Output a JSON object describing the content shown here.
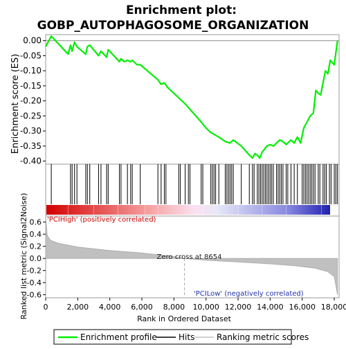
{
  "chart_data": {
    "type": "line",
    "title": "Enrichment plot:",
    "subtitle": "GOBP_AUTOPHAGOSOME_ORGANIZATION",
    "top_panel": {
      "ylabel": "Enrichment score (ES)",
      "ylim": [
        -0.41,
        0.02
      ],
      "yticks": [
        0.0,
        -0.05,
        -0.1,
        -0.15,
        -0.2,
        -0.25,
        -0.3,
        -0.35,
        -0.4
      ],
      "ytick_labels": [
        "0.00",
        "-0.05",
        "-0.10",
        "-0.15",
        "-0.20",
        "-0.25",
        "-0.30",
        "-0.35",
        "-0.40"
      ],
      "series_name": "Enrichment profile",
      "series_color": "#00ee00",
      "x": [
        0,
        350,
        1400,
        1550,
        1650,
        1800,
        1950,
        2500,
        2600,
        2750,
        3300,
        3450,
        3800,
        3900,
        4600,
        4700,
        4900,
        5100,
        5300,
        5400,
        5700,
        5900,
        7000,
        7200,
        7400,
        7600,
        8300,
        8700,
        9200,
        9700,
        10000,
        10300,
        10800,
        11200,
        11500,
        11700,
        12200,
        12700,
        12900,
        13050,
        13200,
        13350,
        13500,
        13650,
        13800,
        14000,
        14200,
        14400,
        14600,
        14800,
        15000,
        15300,
        15500,
        15700,
        15900,
        16100,
        16300,
        16500,
        16700,
        16850,
        17000,
        17150,
        17300,
        17450,
        17600,
        17750,
        18000,
        18200
      ],
      "y": [
        -0.02,
        0.015,
        -0.045,
        -0.015,
        -0.035,
        -0.005,
        -0.02,
        -0.045,
        -0.02,
        -0.015,
        -0.05,
        -0.035,
        -0.055,
        -0.03,
        -0.07,
        -0.06,
        -0.07,
        -0.065,
        -0.07,
        -0.065,
        -0.08,
        -0.08,
        -0.13,
        -0.145,
        -0.14,
        -0.155,
        -0.19,
        -0.21,
        -0.24,
        -0.27,
        -0.29,
        -0.305,
        -0.32,
        -0.335,
        -0.34,
        -0.33,
        -0.35,
        -0.38,
        -0.39,
        -0.375,
        -0.38,
        -0.39,
        -0.37,
        -0.36,
        -0.35,
        -0.345,
        -0.35,
        -0.34,
        -0.33,
        -0.335,
        -0.345,
        -0.33,
        -0.34,
        -0.32,
        -0.34,
        -0.29,
        -0.27,
        -0.25,
        -0.24,
        -0.165,
        -0.175,
        -0.18,
        -0.14,
        -0.1,
        -0.11,
        -0.065,
        -0.08,
        0.0
      ]
    },
    "hits": [
      350,
      1550,
      1650,
      1800,
      1950,
      2500,
      2600,
      2750,
      3300,
      3450,
      3800,
      3900,
      4600,
      4700,
      5100,
      5300,
      5400,
      5900,
      7000,
      7200,
      7400,
      7500,
      8300,
      8400,
      8700,
      8900,
      9000,
      9700,
      9800,
      10300,
      10400,
      10500,
      10600,
      10800,
      11200,
      11300,
      11400,
      11500,
      11600,
      11700,
      12200,
      12700,
      12900,
      13000,
      13200,
      13300,
      13400,
      13500,
      13600,
      13700,
      13800,
      13900,
      14000,
      14100,
      14200,
      14400,
      14500,
      14600,
      14700,
      14800,
      15000,
      15100,
      15300,
      15500,
      15700,
      16000,
      16100,
      16200,
      16300,
      16400,
      16500,
      16600,
      16700,
      16800,
      17000,
      17100,
      17300,
      17400,
      17500,
      17700,
      17800,
      18000,
      18100,
      18200
    ],
    "bottom_panel": {
      "ylabel": "Ranked list metric (Signal2Noise)",
      "xlabel": "Rank in Ordered Dataset",
      "ylim": [
        -0.65,
        0.7
      ],
      "yticks": [
        0.6,
        0.4,
        0.2,
        0.0,
        -0.2,
        -0.4,
        -0.6
      ],
      "ytick_labels": [
        "0.6",
        "0.4",
        "0.2",
        "0.0",
        "-0.2",
        "-0.4",
        "-0.6"
      ],
      "series_name": "Ranking metric scores",
      "fill_color": "#c0c0c0",
      "metric_curve": [
        [
          0,
          0.7
        ],
        [
          100,
          0.38
        ],
        [
          300,
          0.3
        ],
        [
          800,
          0.25
        ],
        [
          2000,
          0.19
        ],
        [
          4000,
          0.13
        ],
        [
          6000,
          0.09
        ],
        [
          8000,
          0.03
        ],
        [
          8654,
          0.0
        ],
        [
          10000,
          -0.03
        ],
        [
          12000,
          -0.06
        ],
        [
          14000,
          -0.09
        ],
        [
          15500,
          -0.12
        ],
        [
          16800,
          -0.16
        ],
        [
          17600,
          -0.22
        ],
        [
          18000,
          -0.3
        ],
        [
          18200,
          -0.6
        ]
      ],
      "zero_cross_label": "Zero cross at 8654",
      "zero_cross": 8654,
      "high_label": "'PCIHigh' (positively correlated)",
      "low_label": "'PCILow' (negatively correlated)"
    },
    "xlim": [
      0,
      18300
    ],
    "xticks": [
      0,
      2000,
      4000,
      6000,
      8000,
      10000,
      12000,
      14000,
      16000,
      18000
    ],
    "xtick_labels": [
      "0",
      "2,000",
      "4,000",
      "6,000",
      "8,000",
      "10,000",
      "12,000",
      "14,000",
      "16,000",
      "18,000"
    ],
    "legend": {
      "placement": "bottom",
      "items": [
        {
          "label": "Enrichment profile",
          "color": "#00ee00"
        },
        {
          "label": "Hits",
          "color": "#000000"
        },
        {
          "label": "Ranking metric scores",
          "color": "#c0c0c0"
        }
      ]
    }
  }
}
